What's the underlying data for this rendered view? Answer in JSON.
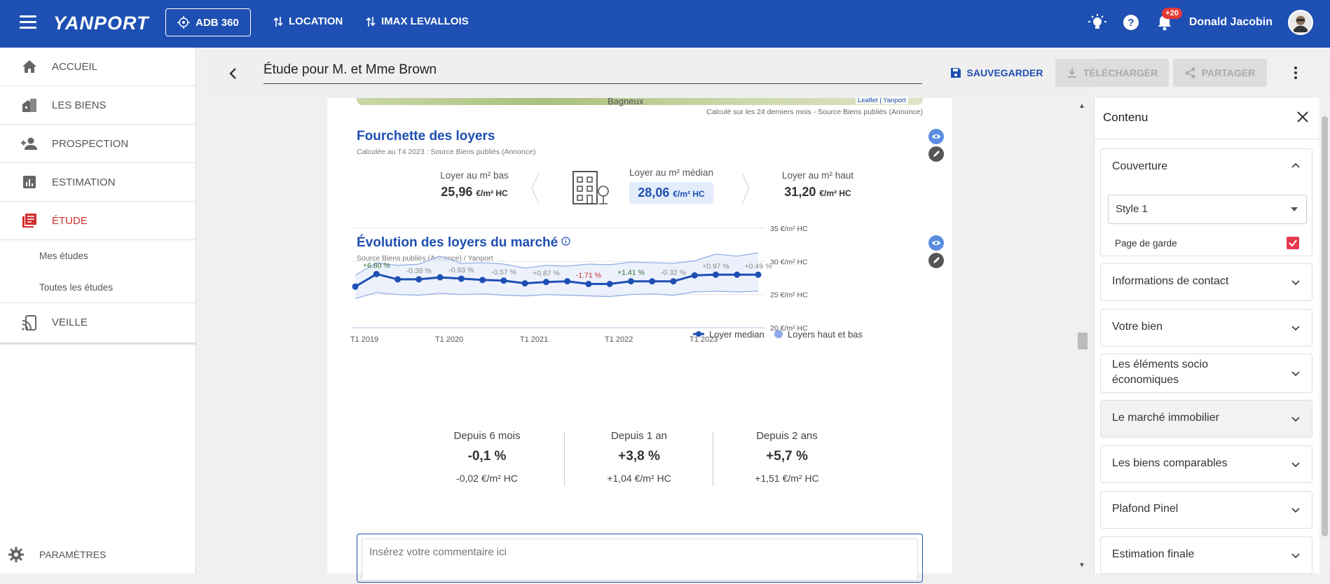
{
  "topbar": {
    "logo": "YANPORT",
    "adb_label": "ADB 360",
    "nav": [
      {
        "label": "LOCATION"
      },
      {
        "label": "IMAX LEVALLOIS"
      }
    ],
    "notif_badge": "+20",
    "user_name": "Donald Jacobin",
    "color": "#1e4fb3"
  },
  "sidebar": {
    "items": [
      {
        "label": "ACCUEIL",
        "icon": "home-icon"
      },
      {
        "label": "LES BIENS",
        "icon": "buildings-icon"
      },
      {
        "label": "PROSPECTION",
        "icon": "add-person-icon"
      },
      {
        "label": "ESTIMATION",
        "icon": "chart-icon"
      },
      {
        "label": "ÉTUDE",
        "icon": "document-icon",
        "active": true
      },
      {
        "label": "VEILLE",
        "icon": "cast-icon"
      }
    ],
    "sub_items": [
      {
        "label": "Mes études"
      },
      {
        "label": "Toutes les études"
      }
    ],
    "settings_label": "PARAMÈTRES"
  },
  "header": {
    "title": "Étude pour M. et Mme Brown",
    "save_label": "SAUVEGARDER",
    "download_label": "TÉLÉCHARGER",
    "share_label": "PARTAGER"
  },
  "map_note": "Calculé sur les 24 derniers mois - Source Biens publiés (Annonce)",
  "map_attribution": "Leaflet | Yanport",
  "map_town": "Bagneux",
  "rents": {
    "title": "Fourchette des loyers",
    "subtitle": "Calculée au T4 2023 : Source Biens publiés (Annonce)",
    "low_label": "Loyer au m² bas",
    "low_value": "25,96",
    "median_label": "Loyer au m² médian",
    "median_value": "28,06",
    "high_label": "Loyer au m² haut",
    "high_value": "31,20",
    "unit": "€/m² HC"
  },
  "evolution": {
    "title": "Évolution des loyers du marché",
    "subtitle": "Source Biens publiés (Annonce) / Yanport",
    "stats": [
      {
        "label": "Depuis 6 mois",
        "pct": "-0,1 %",
        "eur": "-0,02 €/m² HC"
      },
      {
        "label": "Depuis 1 an",
        "pct": "+3,8 %",
        "eur": "+1,04 €/m² HC"
      },
      {
        "label": "Depuis 2 ans",
        "pct": "+5,7 %",
        "eur": "+1,51 €/m² HC"
      }
    ]
  },
  "chart_data": {
    "type": "line",
    "title": "",
    "x_ticks": [
      "T1 2019",
      "T1 2020",
      "T1 2021",
      "T1 2022",
      "T1 2023"
    ],
    "y_ticks": [
      "35 €/m² HC",
      "30 €/m² HC",
      "25 €/m² HC",
      "20 €/m² HC"
    ],
    "ylim": [
      20,
      35
    ],
    "grid": true,
    "legend": "bottom-right",
    "series": [
      {
        "name": "Loyer median",
        "color": "#1e4fb3",
        "values": [
          26.2,
          28.1,
          27.3,
          27.3,
          27.6,
          27.4,
          27.2,
          27.1,
          26.7,
          26.9,
          27.0,
          26.6,
          26.6,
          27.0,
          27.0,
          27.0,
          27.9,
          28.0,
          28.0,
          28.0
        ]
      },
      {
        "name": "Loyers haut et bas",
        "color": "#8fa9e8",
        "upper": [
          27.9,
          29.8,
          29.4,
          29.6,
          30.8,
          29.7,
          29.8,
          29.6,
          29.0,
          29.4,
          29.3,
          29.6,
          29.5,
          29.9,
          29.8,
          29.7,
          30.1,
          31.1,
          30.8,
          31.3
        ],
        "lower": [
          24.4,
          25.3,
          25.0,
          24.9,
          25.2,
          25.0,
          25.1,
          24.9,
          24.8,
          25.0,
          24.9,
          24.8,
          24.7,
          25.0,
          25.1,
          24.9,
          25.4,
          25.5,
          25.4,
          25.5
        ]
      }
    ],
    "annotations": [
      {
        "idx": 1,
        "label": "+6.80 %",
        "color": "#2e6b2e"
      },
      {
        "idx": 3,
        "label": "-0.38 %",
        "color": "#888888"
      },
      {
        "idx": 5,
        "label": "-0.93 %",
        "color": "#888888"
      },
      {
        "idx": 7,
        "label": "-0.57 %",
        "color": "#888888"
      },
      {
        "idx": 9,
        "label": "+0.87 %",
        "color": "#888888"
      },
      {
        "idx": 11,
        "label": "-1.71 %",
        "color": "#c62828"
      },
      {
        "idx": 13,
        "label": "+1.41 %",
        "color": "#2e6b2e"
      },
      {
        "idx": 15,
        "label": "-0.32 %",
        "color": "#888888"
      },
      {
        "idx": 17,
        "label": "+0.97 %",
        "color": "#888888"
      },
      {
        "idx": 19,
        "label": "+0.49 %",
        "color": "#888888"
      }
    ]
  },
  "comment": {
    "placeholder": "Insérez votre commentaire ici"
  },
  "panel": {
    "title": "Contenu",
    "style_select": "Style 1",
    "cover_checkbox_label": "Page de garde",
    "sections": [
      {
        "label": "Couverture"
      },
      {
        "label": "Informations de contact"
      },
      {
        "label": "Votre bien"
      },
      {
        "label": "Les éléments socio économiques"
      },
      {
        "label": "Le marché immobilier"
      },
      {
        "label": "Les biens comparables"
      },
      {
        "label": "Plafond Pinel"
      },
      {
        "label": "Estimation finale"
      }
    ]
  }
}
